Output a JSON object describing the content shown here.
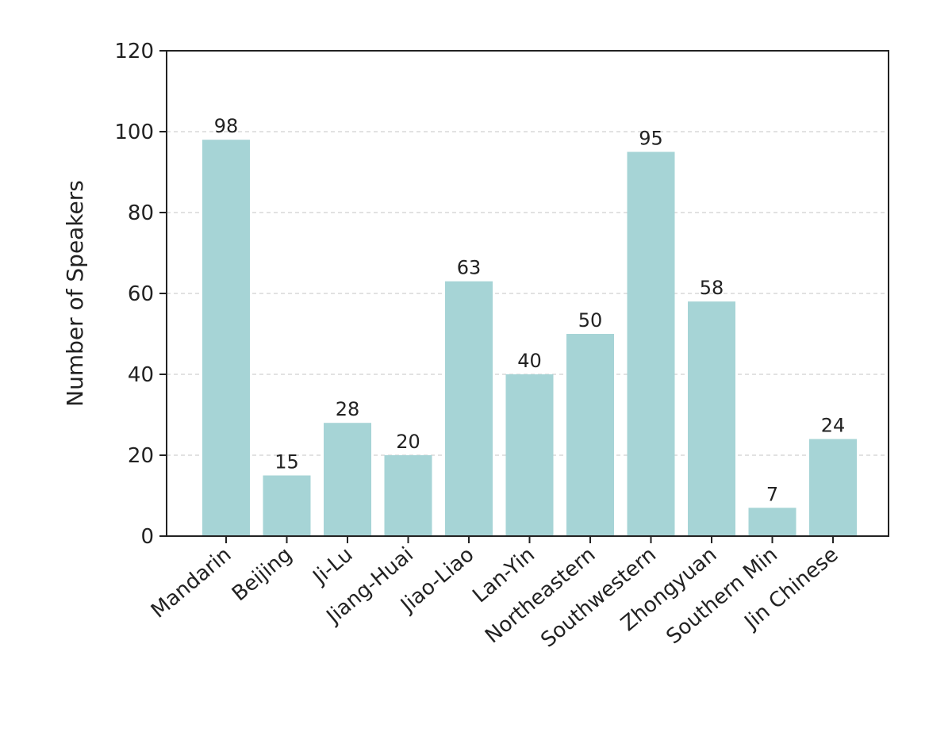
{
  "chart_data": {
    "type": "bar",
    "title": "",
    "xlabel": "",
    "ylabel": "Number of Speakers",
    "categories": [
      "Mandarin",
      "Beijing",
      "Ji-Lu",
      "Jiang-Huai",
      "Jiao-Liao",
      "Lan-Yin",
      "Northeastern",
      "Southwestern",
      "Zhongyuan",
      "Southern Min",
      "Jin Chinese"
    ],
    "values": [
      98,
      15,
      28,
      20,
      63,
      40,
      50,
      95,
      58,
      7,
      24
    ],
    "ylim": [
      0,
      120
    ],
    "yticks": [
      0,
      20,
      40,
      60,
      80,
      100,
      120
    ],
    "grid": "horizontal dashed",
    "bar_color": "#a6d4d6",
    "legend": "none"
  }
}
